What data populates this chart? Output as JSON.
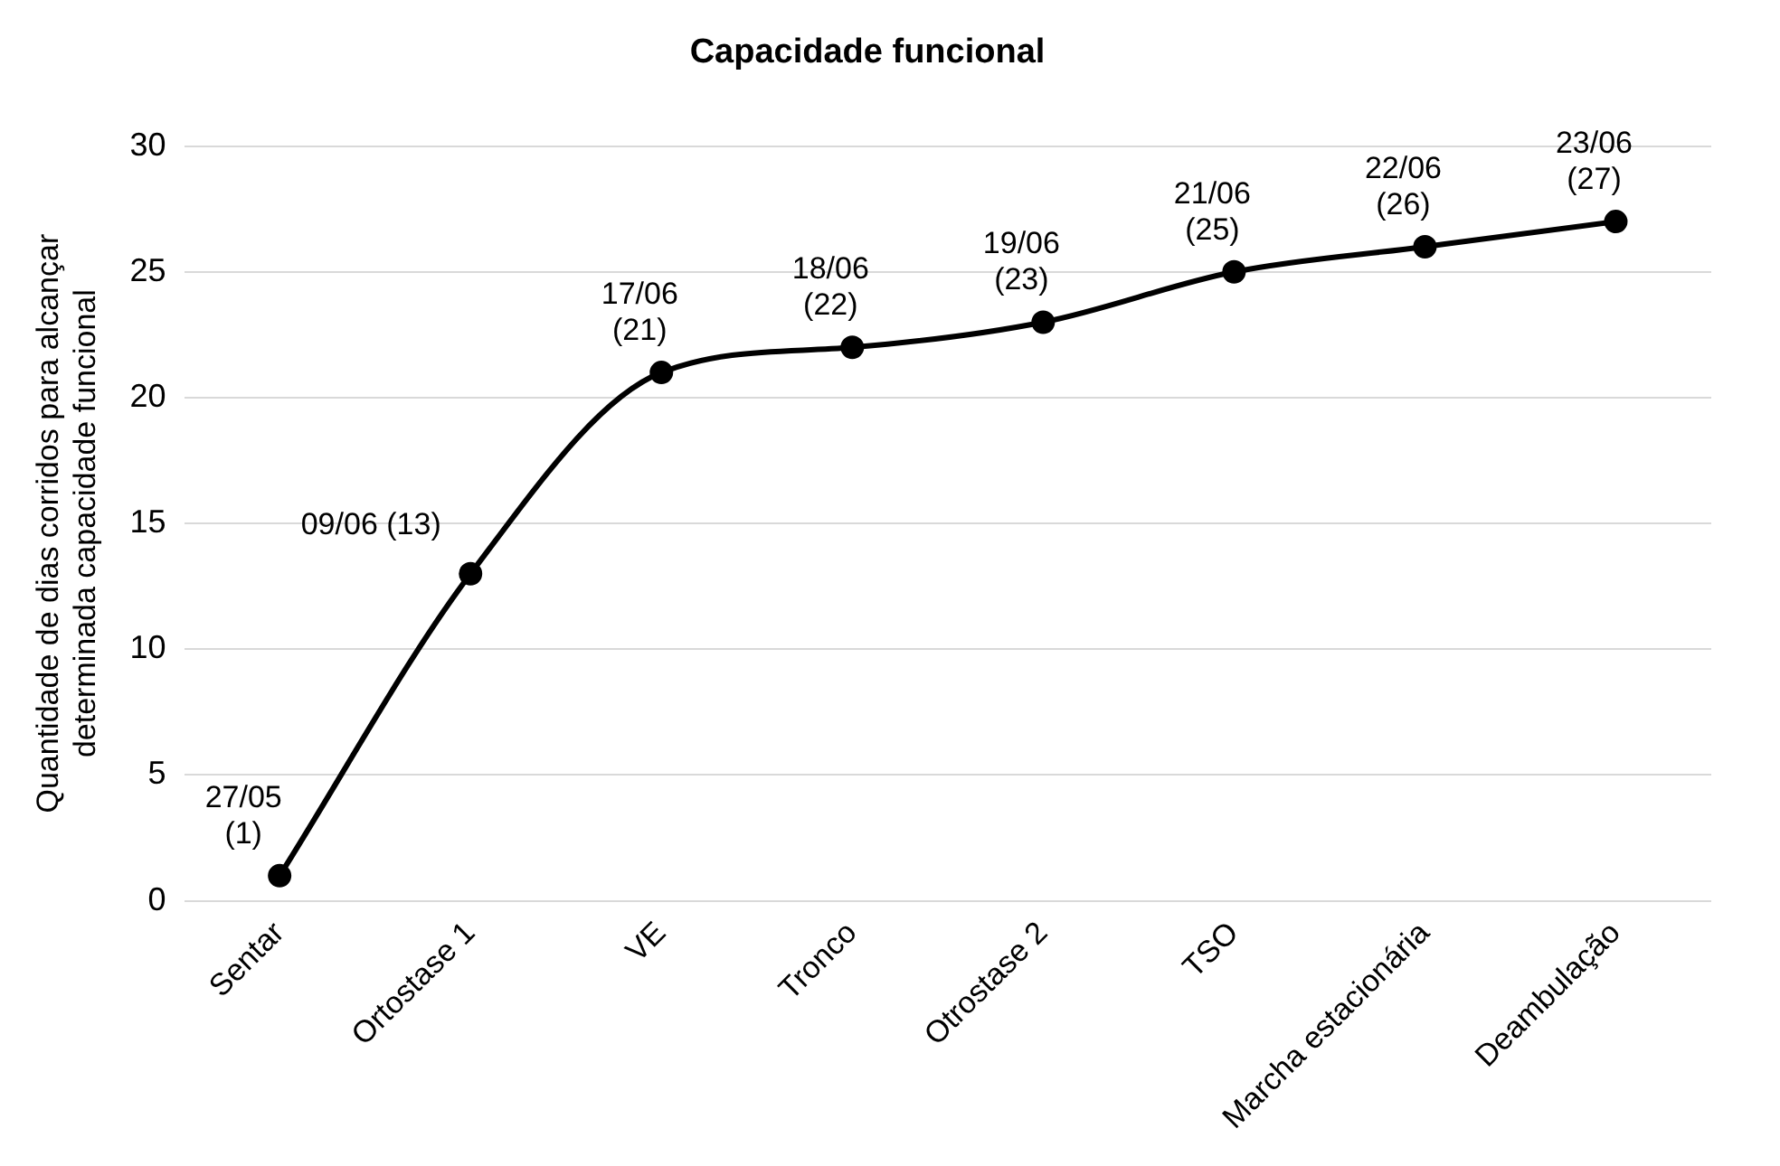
{
  "chart_data": {
    "type": "line",
    "title": "Capacidade funcional",
    "ylabel": "Quantidade de dias corridos para alcançar\ndeterminada capacidade funcional",
    "categories": [
      "Sentar",
      "Ortostase 1",
      "VE",
      "Tronco",
      "Otrostase 2",
      "TSO",
      "Marcha estacionária",
      "Deambulação"
    ],
    "series": [
      {
        "color": "#000000",
        "values": [
          1,
          13,
          21,
          22,
          23,
          25,
          26,
          27
        ],
        "value_labels": [
          "27/05\n(1)",
          "09/06 (13)",
          "17/06\n(21)",
          "18/06\n(22)",
          "19/06\n(23)",
          "21/06\n(25)",
          "22/06\n(26)",
          "23/06\n(27)"
        ]
      }
    ],
    "ylim": [
      0,
      30
    ],
    "yticks": [
      0,
      5,
      10,
      15,
      20,
      25,
      30
    ],
    "grid": "y",
    "legend": false,
    "marker": "circle",
    "line_style": "solid"
  }
}
